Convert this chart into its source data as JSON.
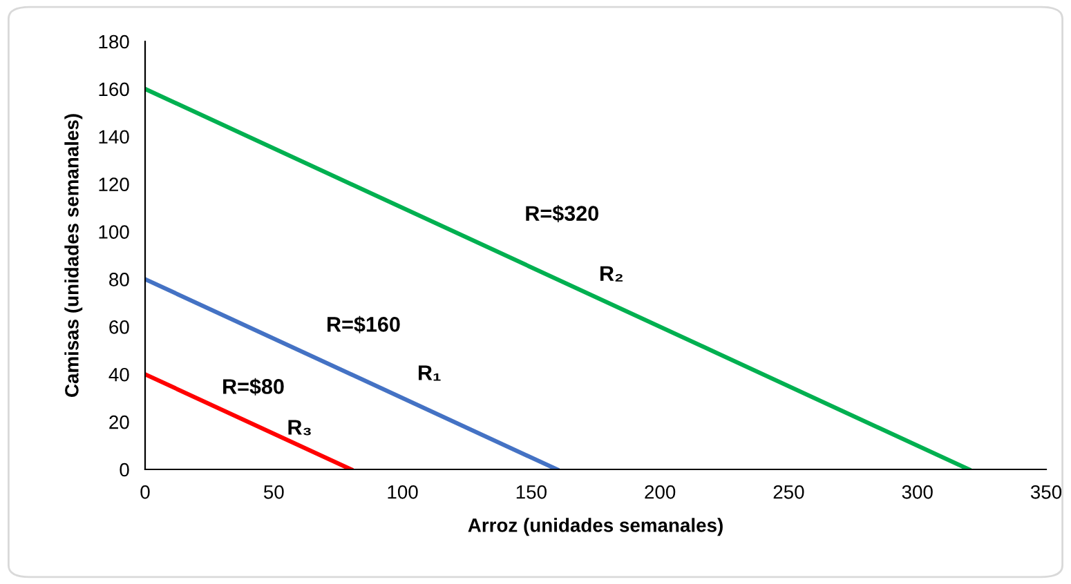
{
  "chart_data": {
    "type": "line",
    "xlabel": "Arroz (unidades semanales)",
    "ylabel": "Camisas (unidades semanales)",
    "series": [
      {
        "name": "R₂",
        "color": "#00b050",
        "x": [
          0,
          320
        ],
        "values": [
          160,
          0
        ]
      },
      {
        "name": "R₁",
        "color": "#4472c4",
        "x": [
          0,
          160
        ],
        "values": [
          80,
          0
        ]
      },
      {
        "name": "R₃",
        "color": "#ff0000",
        "x": [
          0,
          80
        ],
        "values": [
          40,
          0
        ]
      }
    ],
    "annotations": [
      "R=$320",
      "R=$160",
      "R=$80"
    ],
    "xlim": [
      0,
      350
    ],
    "xticks": [
      0,
      50,
      100,
      150,
      200,
      250,
      300,
      350
    ],
    "ylim": [
      0,
      180
    ],
    "yticks": [
      0,
      20,
      40,
      60,
      80,
      100,
      120,
      140,
      160,
      180
    ],
    "grid": false,
    "legend": false,
    "line_style": "solid",
    "marker": "none"
  }
}
